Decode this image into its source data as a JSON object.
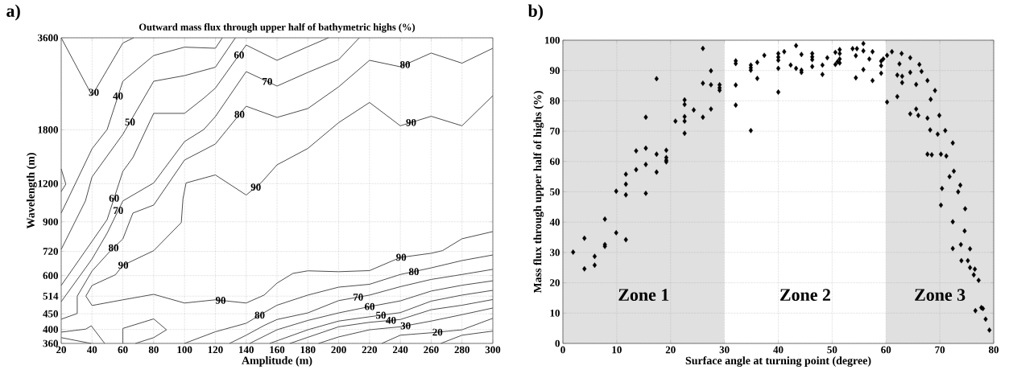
{
  "chart_data": [
    {
      "type": "line",
      "title": "Outward mass flux through upper half of bathymetric highs (%)",
      "xlabel": "Amplitude (m)",
      "ylabel": "Wavelength (m)",
      "annotations": [
        "a)"
      ],
      "xlim": [
        20,
        300
      ],
      "ylim": [
        360,
        3600
      ],
      "log": "y",
      "grid": true,
      "line_style": "solid",
      "xticks": [
        20,
        40,
        60,
        80,
        100,
        120,
        140,
        160,
        180,
        200,
        220,
        240,
        260,
        280,
        300
      ],
      "yticks": [
        360,
        400,
        450,
        514,
        600,
        720,
        900,
        1200,
        1800,
        3600
      ],
      "series": [
        {
          "name": "30",
          "color": "#000000",
          "x": [
            20,
            40,
            60,
            67
          ],
          "values": [
            3600,
            2330,
            3460,
            3600
          ]
        },
        {
          "name": "40",
          "color": "#000000",
          "x": [
            20,
            40,
            49.8,
            60,
            80,
            100,
            120,
            124.5
          ],
          "values": [
            961,
            1560,
            1804,
            2595,
            3150,
            3355,
            3327,
            3600
          ]
        },
        {
          "name": "50",
          "color": "#000000",
          "x": [
            20,
            35.7,
            40,
            60,
            80,
            100,
            120,
            133
          ],
          "values": [
            731,
            1053,
            1262,
            1740,
            2595,
            2707,
            2884,
            3600
          ]
        },
        {
          "name": "60",
          "color": "#000000",
          "x": [
            20,
            40,
            49.8,
            60,
            66.5,
            80,
            100,
            112.5,
            120,
            140,
            160,
            180,
            193.4
          ],
          "values": [
            557,
            777,
            915,
            1316,
            1460,
            2037,
            2037,
            2284,
            2464,
            3409,
            3038,
            3367,
            3600
          ]
        },
        {
          "name": "70",
          "color": "#000000",
          "x": [
            20,
            40,
            49.8,
            60,
            80,
            100,
            112.5,
            120,
            140,
            160,
            180,
            200,
            213.4
          ],
          "values": [
            493,
            680,
            826,
            1053,
            1206,
            1647,
            1804,
            1988,
            2790,
            2502,
            2773,
            3056,
            3600
          ]
        },
        {
          "name": "80",
          "color": "#000000",
          "x": [
            20,
            30.4,
            30.4,
            40,
            51.9,
            60,
            66.5,
            80,
            100,
            120,
            140,
            160,
            180,
            200,
            220,
            240,
            260,
            280,
            300
          ],
          "values": [
            432,
            451,
            514,
            621,
            723,
            791,
            961,
            1021,
            1433,
            1617,
            2150,
            1976,
            2113,
            2488,
            3038,
            2894,
            3209,
            2973,
            3327
          ]
        },
        {
          "name": "90",
          "color": "#000000",
          "x": [
            300,
            280,
            260,
            240,
            220,
            200,
            180,
            160,
            149.6,
            140,
            120,
            101,
            99,
            97.9,
            80,
            60,
            55.2,
            40,
            36,
            40,
            60,
            80,
            100,
            120,
            140,
            151.6,
            160,
            170.3,
            180,
            200,
            220,
            240,
            260,
            267.3,
            280,
            300
          ],
          "values": [
            2327,
            1855,
            1993,
            1855,
            2211,
            1900,
            1564,
            1382,
            1206,
            1101,
            1281,
            1206,
            1071,
            895,
            724,
            648,
            604,
            557,
            514,
            479,
            500,
            521,
            488,
            500,
            488,
            518,
            567,
            610,
            622,
            618,
            623,
            688,
            710,
            724,
            792,
            836
          ]
        },
        {
          "name": "80",
          "color": "#000000",
          "x": [
            100,
            120,
            140,
            151.6,
            160,
            180,
            200,
            220,
            240,
            260,
            280,
            300
          ],
          "values": [
            360,
            393,
            419,
            454,
            480,
            518,
            550,
            562,
            605,
            636,
            672,
            701
          ]
        },
        {
          "name": "70",
          "color": "#000000",
          "x": [
            129.2,
            140,
            151.6,
            160,
            180,
            200,
            220,
            240,
            260,
            280,
            300
          ],
          "values": [
            360,
            383,
            412,
            431,
            453,
            497,
            518,
            552,
            583,
            605,
            629
          ]
        },
        {
          "name": "60",
          "color": "#000000",
          "x": [
            142.3,
            160,
            180,
            200,
            220,
            240,
            260,
            280,
            300
          ],
          "values": [
            360,
            399,
            428,
            453,
            475,
            496,
            534,
            558,
            577
          ]
        },
        {
          "name": "50",
          "color": "#000000",
          "x": [
            155.3,
            180,
            200,
            220,
            240,
            260,
            280,
            300
          ],
          "values": [
            360,
            399,
            426,
            440,
            454,
            495,
            518,
            537
          ]
        },
        {
          "name": "40",
          "color": "#000000",
          "x": [
            168.4,
            200,
            220,
            240,
            260,
            280,
            300
          ],
          "values": [
            360,
            408,
            422,
            431,
            464,
            480,
            501
          ]
        },
        {
          "name": "30",
          "color": "#000000",
          "x": [
            187,
            200,
            220,
            240,
            260,
            280,
            300
          ],
          "values": [
            360,
            378,
            399,
            408,
            426,
            447,
            470
          ]
        },
        {
          "name": "20",
          "color": "#000000",
          "x": [
            228,
            240,
            260,
            280,
            300
          ],
          "values": [
            360,
            383,
            390,
            399,
            435
          ]
        },
        {
          "color": "#000000",
          "x": [
            266.3,
            280,
            300
          ],
          "values": [
            360,
            383,
            395
          ]
        },
        {
          "color": "#000000",
          "x": [
            20,
            23,
            20
          ],
          "values": [
            1341,
            1195,
            1130
          ]
        },
        {
          "color": "#000000",
          "x": [
            20,
            36,
            39.5,
            48.2
          ],
          "values": [
            392,
            401,
            411,
            360
          ]
        },
        {
          "color": "#000000",
          "x": [
            20,
            39.3
          ],
          "values": [
            376,
            360
          ]
        },
        {
          "color": "#000000",
          "x": [
            60,
            60,
            80,
            88.3,
            80,
            68.2
          ],
          "values": [
            360,
            403,
            433,
            399,
            376,
            360
          ]
        }
      ]
    },
    {
      "type": "scatter",
      "xlabel": "Surface angle at turning point (degree)",
      "ylabel": "Mass flux through upper half of highs (%)",
      "annotations": [
        "b)"
      ],
      "xlim": [
        0,
        80
      ],
      "ylim": [
        0,
        100
      ],
      "grid": true,
      "marker": "diamond",
      "color": "#000000",
      "xticks": [
        0,
        10,
        20,
        30,
        40,
        50,
        60,
        70,
        80
      ],
      "yticks": [
        0,
        10,
        20,
        30,
        40,
        50,
        60,
        70,
        80,
        90,
        100
      ],
      "bands": [
        {
          "axis": "x",
          "from": 0,
          "to": 30,
          "label": "Zone 1",
          "color": "#e0e0e0"
        },
        {
          "axis": "x",
          "from": 30,
          "to": 60,
          "label": "Zone 2",
          "color": "#ffffff"
        },
        {
          "axis": "x",
          "from": 60,
          "to": 80,
          "label": "Zone 3",
          "color": "#e0e0e0"
        }
      ],
      "x": [
        1.9,
        4.0,
        4.0,
        5.9,
        5.9,
        7.8,
        7.8,
        7.8,
        9.9,
        9.9,
        11.7,
        11.7,
        11.7,
        11.7,
        13.6,
        13.6,
        15.4,
        15.4,
        15.4,
        15.4,
        17.4,
        17.4,
        17.4,
        19.2,
        19.2,
        19.2,
        19.2,
        20.9,
        22.6,
        22.6,
        22.6,
        22.6,
        22.6,
        24.3,
        26.0,
        26.0,
        26.0,
        27.5,
        27.5,
        27.5,
        29.1,
        29.1,
        29.1,
        32.1,
        32.1,
        32.1,
        32.1,
        34.9,
        34.9,
        34.9,
        34.9,
        36.1,
        36.1,
        37.4,
        40,
        40,
        40,
        40,
        40,
        41.1,
        42.3,
        43.3,
        43.3,
        44.3,
        44.3,
        44.3,
        46.3,
        46.3,
        46.3,
        46.3,
        48.2,
        48.2,
        49.1,
        50.6,
        50.6,
        51.0,
        51.4,
        51.4,
        51.4,
        51.4,
        53.8,
        54.4,
        54.4,
        54.6,
        55.8,
        55.8,
        55.8,
        56.9,
        57.5,
        57.5,
        59.1,
        59.1,
        59.1,
        59.5,
        60.2,
        60.2,
        61.1,
        62.1,
        62.1,
        62.5,
        62.9,
        63.0,
        63.0,
        64.5,
        64.5,
        64.5,
        65.6,
        65.6,
        66.0,
        66.2,
        66.6,
        67.7,
        67.7,
        67.7,
        68.2,
        68.3,
        68.5,
        69.1,
        69.6,
        69.9,
        70.2,
        70.4,
        70.2,
        71.0,
        71.2,
        71.8,
        72.4,
        72.4,
        72.6,
        72.4,
        73.4,
        73.8,
        73.9,
        74.0,
        74.7,
        74.6,
        75.2,
        75.6,
        75.6,
        76.5,
        76.3,
        77.2,
        76.6,
        77.7,
        78.0,
        78.5,
        79.2
      ],
      "values": [
        30.1,
        34.7,
        24.6,
        28.7,
        25.8,
        41.0,
        32.6,
        32.0,
        50.2,
        36.5,
        55.8,
        52.5,
        49.0,
        34.2,
        63.5,
        57.3,
        74.6,
        64.4,
        59.0,
        49.5,
        87.3,
        62.4,
        56.5,
        63.7,
        61.3,
        60.4,
        59.9,
        73.3,
        80.3,
        78.8,
        74.8,
        73.3,
        69.3,
        77.0,
        97.3,
        85.8,
        74.6,
        89.9,
        85.3,
        77.3,
        85.3,
        84.3,
        83.5,
        93.2,
        92.3,
        85.2,
        78.6,
        91.8,
        90.9,
        90.1,
        70.2,
        92.7,
        87.4,
        95.0,
        95.6,
        94.4,
        93.4,
        90.7,
        82.9,
        96.2,
        91.8,
        98.2,
        90.7,
        95.3,
        90.1,
        89.4,
        95.6,
        94.5,
        93.6,
        91.3,
        91.8,
        88.7,
        94.2,
        96.0,
        92.0,
        92.9,
        96.9,
        95.6,
        93.8,
        92.5,
        97.2,
        94.9,
        87.6,
        97.2,
        98.9,
        96.5,
        90.3,
        93.8,
        96.2,
        86.7,
        93.1,
        91.6,
        89.1,
        93.8,
        79.6,
        95.0,
        96.2,
        88.5,
        81.4,
        92.2,
        95.6,
        88.1,
        86.0,
        94.2,
        89.4,
        75.7,
        85.4,
        77.3,
        75.2,
        92.0,
        89.7,
        86.7,
        74.3,
        62.4,
        70.4,
        80.5,
        62.2,
        83.4,
        69.0,
        75.2,
        62.4,
        51.1,
        45.6,
        70.2,
        61.8,
        55.0,
        66.1,
        40.1,
        56.8,
        31.3,
        50.0,
        52.2,
        32.6,
        27.3,
        44.4,
        37.1,
        27.3,
        31.2,
        25.0,
        24.5,
        22.6,
        20.8,
        10.8,
        11.8,
        11.5,
        8.0,
        4.4
      ]
    }
  ]
}
